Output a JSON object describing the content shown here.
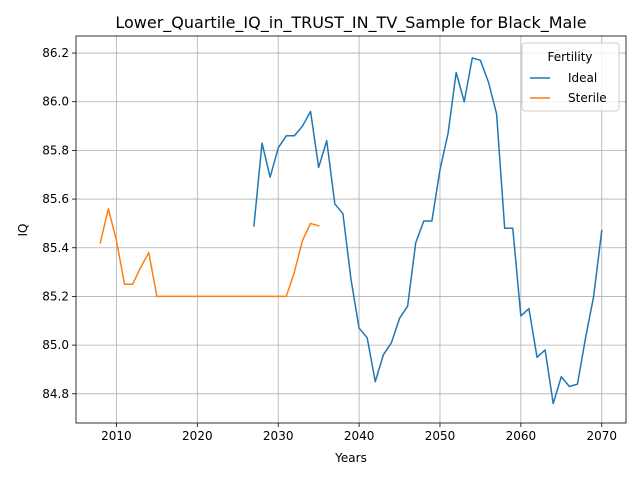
{
  "chart_data": {
    "type": "line",
    "title": "Lower_Quartile_IQ_in_TRUST_IN_TV_Sample for Black_Male",
    "xlabel": "Years",
    "ylabel": "IQ",
    "xlim": [
      2005,
      2073
    ],
    "ylim": [
      84.68,
      86.27
    ],
    "xticks": [
      2010,
      2020,
      2030,
      2040,
      2050,
      2060,
      2070
    ],
    "yticks": [
      84.8,
      85.0,
      85.2,
      85.4,
      85.6,
      85.8,
      86.0,
      86.2
    ],
    "xtick_labels": [
      "2010",
      "2020",
      "2030",
      "2040",
      "2050",
      "2060",
      "2070"
    ],
    "ytick_labels": [
      "84.8",
      "85.0",
      "85.2",
      "85.4",
      "85.6",
      "85.8",
      "86.0",
      "86.2"
    ],
    "grid": true,
    "legend": {
      "title": "Fertility",
      "position": "top-right"
    },
    "series": [
      {
        "name": "Ideal",
        "color": "#1f77b4",
        "x": [
          2027,
          2028,
          2029,
          2030,
          2031,
          2032,
          2033,
          2034,
          2035,
          2036,
          2037,
          2038,
          2039,
          2040,
          2041,
          2042,
          2043,
          2044,
          2045,
          2046,
          2047,
          2048,
          2049,
          2050,
          2051,
          2052,
          2053,
          2054,
          2055,
          2056,
          2057,
          2058,
          2059,
          2060,
          2061,
          2062,
          2063,
          2064,
          2065,
          2066,
          2067,
          2068,
          2069,
          2070
        ],
        "y": [
          85.49,
          85.83,
          85.69,
          85.81,
          85.86,
          85.86,
          85.9,
          85.96,
          85.73,
          85.84,
          85.58,
          85.54,
          85.27,
          85.07,
          85.03,
          84.85,
          84.96,
          85.01,
          85.11,
          85.16,
          85.42,
          85.51,
          85.51,
          85.72,
          85.87,
          86.12,
          86.0,
          86.18,
          86.17,
          86.08,
          85.95,
          85.48,
          85.48,
          85.12,
          85.15,
          84.95,
          84.98,
          84.76,
          84.87,
          84.83,
          84.84,
          85.03,
          85.2,
          85.47
        ]
      },
      {
        "name": "Sterile",
        "color": "#ff7f0e",
        "x": [
          2008,
          2009,
          2010,
          2011,
          2012,
          2013,
          2014,
          2015,
          2016,
          2017,
          2018,
          2019,
          2020,
          2021,
          2022,
          2023,
          2024,
          2025,
          2026,
          2027,
          2028,
          2029,
          2030,
          2031,
          2032,
          2033,
          2034,
          2035
        ],
        "y": [
          85.42,
          85.56,
          85.43,
          85.25,
          85.25,
          85.32,
          85.38,
          85.2,
          85.2,
          85.2,
          85.2,
          85.2,
          85.2,
          85.2,
          85.2,
          85.2,
          85.2,
          85.2,
          85.2,
          85.2,
          85.2,
          85.2,
          85.2,
          85.2,
          85.3,
          85.43,
          85.5,
          85.49
        ]
      }
    ]
  }
}
